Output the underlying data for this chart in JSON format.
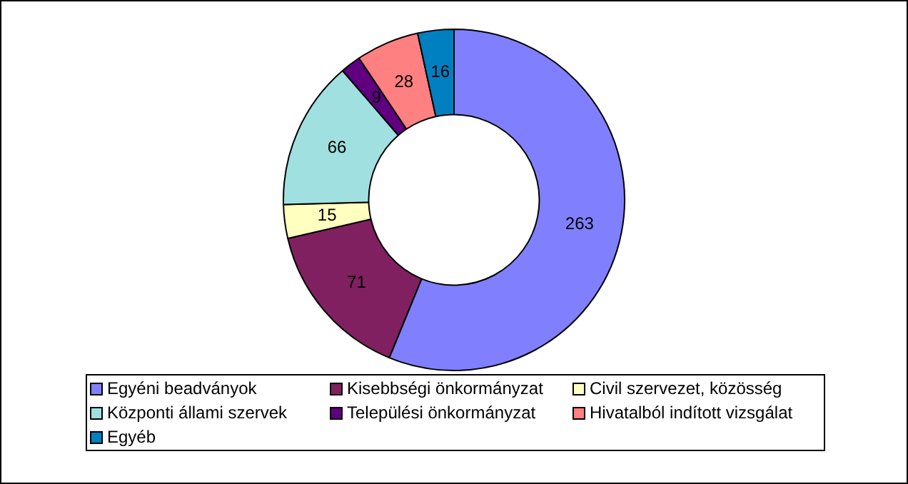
{
  "chart_data": {
    "type": "donut",
    "categories": [
      "Egyéni beadványok",
      "Kisebbségi önkormányzat",
      "Civil szervezet, közösség",
      "Központi állami szervek",
      "Települési önkormányzat",
      "Hivatalból indított vizsgálat",
      "Egyéb"
    ],
    "values": [
      263,
      71,
      15,
      66,
      9,
      28,
      16
    ],
    "colors": [
      "#8080ff",
      "#802060",
      "#ffffc0",
      "#a0e0e0",
      "#600080",
      "#ff8080",
      "#0080c0"
    ],
    "data_labels": true,
    "legend": "bottom"
  }
}
